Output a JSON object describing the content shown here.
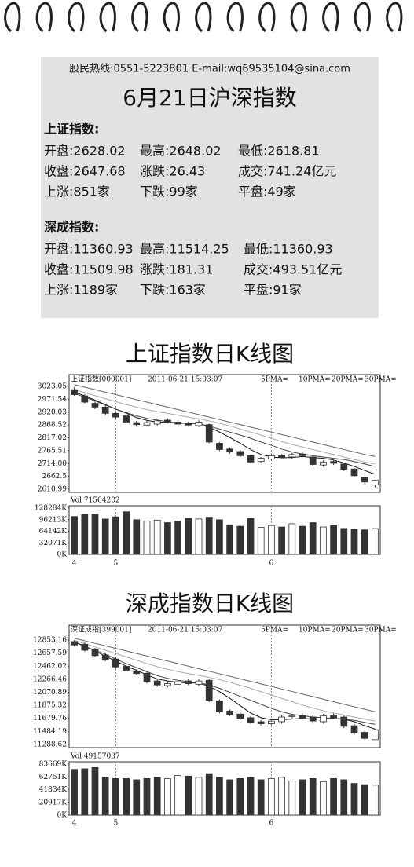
{
  "header": {
    "contact": "股民热线:0551-5223801   E-mail:wq69535104@sina.com",
    "title": "6月21日沪深指数"
  },
  "sections": [
    {
      "name": "上证指数:",
      "rows": [
        [
          "开盘:2628.02",
          "最高:2648.02",
          "最低:2618.81"
        ],
        [
          "收盘:2647.68",
          "涨跌:26.43",
          "成交:741.24亿元"
        ],
        [
          "上涨:851家",
          "下跌:99家",
          "平盘:49家"
        ]
      ]
    },
    {
      "name": "深成指数:",
      "rows": [
        [
          "开盘:11360.93",
          "最高:11514.25",
          "最低:11360.93"
        ],
        [
          "收盘:11509.98",
          "涨跌:181.31",
          "成交:493.51亿元"
        ],
        [
          "上涨:1189家",
          "下跌:163家",
          "平盘:91家"
        ]
      ]
    }
  ],
  "chart_data": [
    {
      "type": "candlestick",
      "title": "上证指数日K线图",
      "label": "上证指数[000001]",
      "datetime": "2011-06-21 15:03:07",
      "vol_label": "Vol 71564202",
      "categories": [
        "4",
        null,
        null,
        null,
        "5",
        null,
        null,
        null,
        null,
        null,
        null,
        null,
        null,
        null,
        null,
        null,
        null,
        null,
        null,
        "6",
        null,
        null,
        null,
        null,
        null,
        null,
        null,
        null,
        null,
        null
      ],
      "open": [
        3010,
        2985,
        2955,
        2940,
        2915,
        2905,
        2878,
        2868,
        2872,
        2888,
        2880,
        2876,
        2866,
        2870,
        2795,
        2772,
        2762,
        2745,
        2722,
        2732,
        2748,
        2740,
        2752,
        2740,
        2708,
        2722,
        2712,
        2692,
        2660,
        2628.02
      ],
      "high": [
        3020,
        2992,
        2962,
        2946,
        2922,
        2910,
        2885,
        2886,
        2892,
        2895,
        2886,
        2882,
        2888,
        2874,
        2800,
        2778,
        2768,
        2750,
        2740,
        2750,
        2752,
        2756,
        2758,
        2745,
        2726,
        2728,
        2716,
        2696,
        2664,
        2648.02
      ],
      "low": [
        2985,
        2955,
        2932,
        2908,
        2893,
        2874,
        2862,
        2862,
        2866,
        2874,
        2866,
        2862,
        2860,
        2795,
        2764,
        2754,
        2740,
        2715,
        2716,
        2728,
        2735,
        2734,
        2740,
        2704,
        2702,
        2708,
        2684,
        2660,
        2630,
        2618.81
      ],
      "close": [
        2990,
        2960,
        2940,
        2915,
        2900,
        2880,
        2870,
        2878,
        2885,
        2880,
        2872,
        2868,
        2880,
        2800,
        2770,
        2760,
        2745,
        2720,
        2735,
        2745,
        2740,
        2750,
        2745,
        2710,
        2720,
        2715,
        2690,
        2665,
        2640,
        2647.68
      ],
      "volume": [
        105000,
        110000,
        112000,
        98000,
        104000,
        118000,
        96000,
        92000,
        95000,
        88000,
        92000,
        100000,
        98000,
        103000,
        96000,
        82000,
        78000,
        100000,
        75000,
        80000,
        76000,
        85000,
        78000,
        88000,
        76000,
        80000,
        72000,
        70000,
        68000,
        71564
      ],
      "ma": [
        {
          "name": "5PMA=",
          "color": "#111111",
          "values": [
            3000,
            2985,
            2968,
            2950,
            2932,
            2916,
            2898,
            2887,
            2880,
            2879,
            2877,
            2876,
            2876,
            2860,
            2840,
            2818,
            2795,
            2770,
            2750,
            2740,
            2737,
            2738,
            2742,
            2738,
            2735,
            2728,
            2716,
            2702,
            2686,
            2671
          ]
        },
        {
          "name": "10PMA=",
          "color": "#444444",
          "values": [
            2995,
            2980,
            2965,
            2948,
            2932,
            2918,
            2905,
            2895,
            2888,
            2882,
            2876,
            2874,
            2873,
            2864,
            2852,
            2840,
            2828,
            2815,
            2800,
            2787,
            2772,
            2760,
            2752,
            2745,
            2740,
            2735,
            2730,
            2722,
            2712,
            2702
          ]
        },
        {
          "name": "20PMA=",
          "color": "#aaaaaa",
          "values": [
            3010,
            2998,
            2986,
            2974,
            2962,
            2950,
            2940,
            2930,
            2922,
            2915,
            2908,
            2900,
            2893,
            2885,
            2875,
            2865,
            2852,
            2840,
            2828,
            2815,
            2802,
            2790,
            2780,
            2770,
            2760,
            2750,
            2740,
            2730,
            2720,
            2712
          ]
        },
        {
          "name": "30PMA=",
          "color": "#666666",
          "values": [
            3030,
            3020,
            3010,
            3000,
            2990,
            2980,
            2970,
            2960,
            2950,
            2940,
            2930,
            2920,
            2910,
            2900,
            2890,
            2880,
            2870,
            2860,
            2850,
            2840,
            2830,
            2820,
            2810,
            2800,
            2790,
            2780,
            2770,
            2760,
            2750,
            2742
          ]
        }
      ],
      "ylim": [
        2610.99,
        3023.05
      ],
      "yticks": [
        3023.05,
        2971.54,
        2920.03,
        2868.52,
        2817.02,
        2765.51,
        {
          "value": 2714,
          "label": "2714.00"
        },
        2662.5,
        2610.99
      ],
      "vlim": [
        0,
        128284
      ],
      "vticks": [
        {
          "value": 128284,
          "label": "128284K"
        },
        {
          "value": 96213,
          "label": "96213K"
        },
        {
          "value": 64142,
          "label": "64142K"
        },
        {
          "value": 32071,
          "label": "32071K"
        },
        {
          "value": 0,
          "label": "0K"
        }
      ]
    },
    {
      "type": "candlestick",
      "title": "深成指数日K线图",
      "label": "深证成指[399001]",
      "datetime": "2011-06-21 15:03:07",
      "vol_label": "Vol 49157037",
      "categories": [
        "4",
        null,
        null,
        null,
        "5",
        null,
        null,
        null,
        null,
        null,
        null,
        null,
        null,
        null,
        null,
        null,
        null,
        null,
        null,
        "6",
        null,
        null,
        null,
        null,
        null,
        null,
        null,
        null,
        null,
        null
      ],
      "open": [
        12830,
        12790,
        12710,
        12630,
        12570,
        12460,
        12390,
        12355,
        12240,
        12170,
        12190,
        12240,
        12190,
        12250,
        11940,
        11790,
        11745,
        11690,
        11630,
        11600,
        11630,
        11705,
        11730,
        11700,
        11630,
        11730,
        11700,
        11570,
        11470,
        11360.93
      ],
      "high": [
        12853,
        12815,
        12735,
        12655,
        12595,
        12485,
        12415,
        12380,
        12265,
        12225,
        12255,
        12265,
        12265,
        12275,
        11965,
        11815,
        11770,
        11715,
        11655,
        11665,
        11725,
        11745,
        11755,
        11725,
        11745,
        11755,
        11725,
        11595,
        11495,
        11514.25
      ],
      "low": [
        12760,
        12680,
        12600,
        12535,
        12425,
        12375,
        12325,
        12205,
        12155,
        12145,
        12165,
        12175,
        12165,
        11925,
        11755,
        11715,
        11655,
        11595,
        11575,
        11575,
        11605,
        11680,
        11665,
        11615,
        11605,
        11665,
        11535,
        11435,
        11355,
        11360.93
      ],
      "close": [
        12780,
        12700,
        12620,
        12560,
        12450,
        12400,
        12350,
        12230,
        12180,
        12200,
        12230,
        12200,
        12240,
        11950,
        11780,
        11740,
        11680,
        11620,
        11600,
        11640,
        11700,
        11720,
        11690,
        11640,
        11720,
        11690,
        11560,
        11460,
        11380,
        11509.98
      ],
      "volume": [
        75000,
        76000,
        78000,
        62000,
        60000,
        60000,
        58000,
        60000,
        62000,
        60000,
        65000,
        64000,
        62000,
        68000,
        62000,
        58000,
        60000,
        62000,
        58000,
        60000,
        62000,
        56000,
        58000,
        60000,
        55000,
        60000,
        58000,
        52000,
        50000,
        49157
      ],
      "ma": [
        {
          "name": "5PMA=",
          "color": "#111111",
          "values": [
            12830,
            12760,
            12690,
            12610,
            12540,
            12460,
            12400,
            12330,
            12270,
            12240,
            12220,
            12210,
            12210,
            12160,
            12080,
            11980,
            11870,
            11760,
            11690,
            11660,
            11660,
            11670,
            11680,
            11670,
            11670,
            11680,
            11670,
            11630,
            11570,
            11520
          ]
        },
        {
          "name": "10PMA=",
          "color": "#444444",
          "values": [
            12820,
            12760,
            12700,
            12640,
            12570,
            12500,
            12440,
            12380,
            12320,
            12280,
            12250,
            12230,
            12215,
            12180,
            12130,
            12070,
            12010,
            11950,
            11890,
            11830,
            11780,
            11740,
            11720,
            11700,
            11690,
            11680,
            11670,
            11650,
            11620,
            11590
          ]
        },
        {
          "name": "20PMA=",
          "color": "#aaaaaa",
          "values": [
            12850,
            12800,
            12750,
            12700,
            12650,
            12600,
            12550,
            12500,
            12455,
            12415,
            12380,
            12350,
            12325,
            12295,
            12260,
            12220,
            12175,
            12130,
            12080,
            12030,
            11980,
            11930,
            11880,
            11835,
            11795,
            11760,
            11730,
            11700,
            11670,
            11640
          ]
        },
        {
          "name": "30PMA=",
          "color": "#666666",
          "values": [
            12880,
            12842,
            12804,
            12766,
            12728,
            12690,
            12652,
            12614,
            12576,
            12538,
            12500,
            12462,
            12424,
            12386,
            12348,
            12310,
            12272,
            12234,
            12196,
            12158,
            12120,
            12082,
            12044,
            12006,
            11968,
            11930,
            11892,
            11854,
            11816,
            11780
          ]
        }
      ],
      "ylim": [
        11288.62,
        12853.16
      ],
      "yticks": [
        12853.16,
        12657.59,
        12462.02,
        12266.46,
        12070.89,
        11875.32,
        11679.76,
        11484.19,
        11288.62
      ],
      "vlim": [
        0,
        83669
      ],
      "vticks": [
        {
          "value": 83669,
          "label": "83669K"
        },
        {
          "value": 62751,
          "label": "62751K"
        },
        {
          "value": 41834,
          "label": "41834K"
        },
        {
          "value": 20917,
          "label": "20917K"
        },
        {
          "value": 0,
          "label": "0K"
        }
      ]
    }
  ]
}
